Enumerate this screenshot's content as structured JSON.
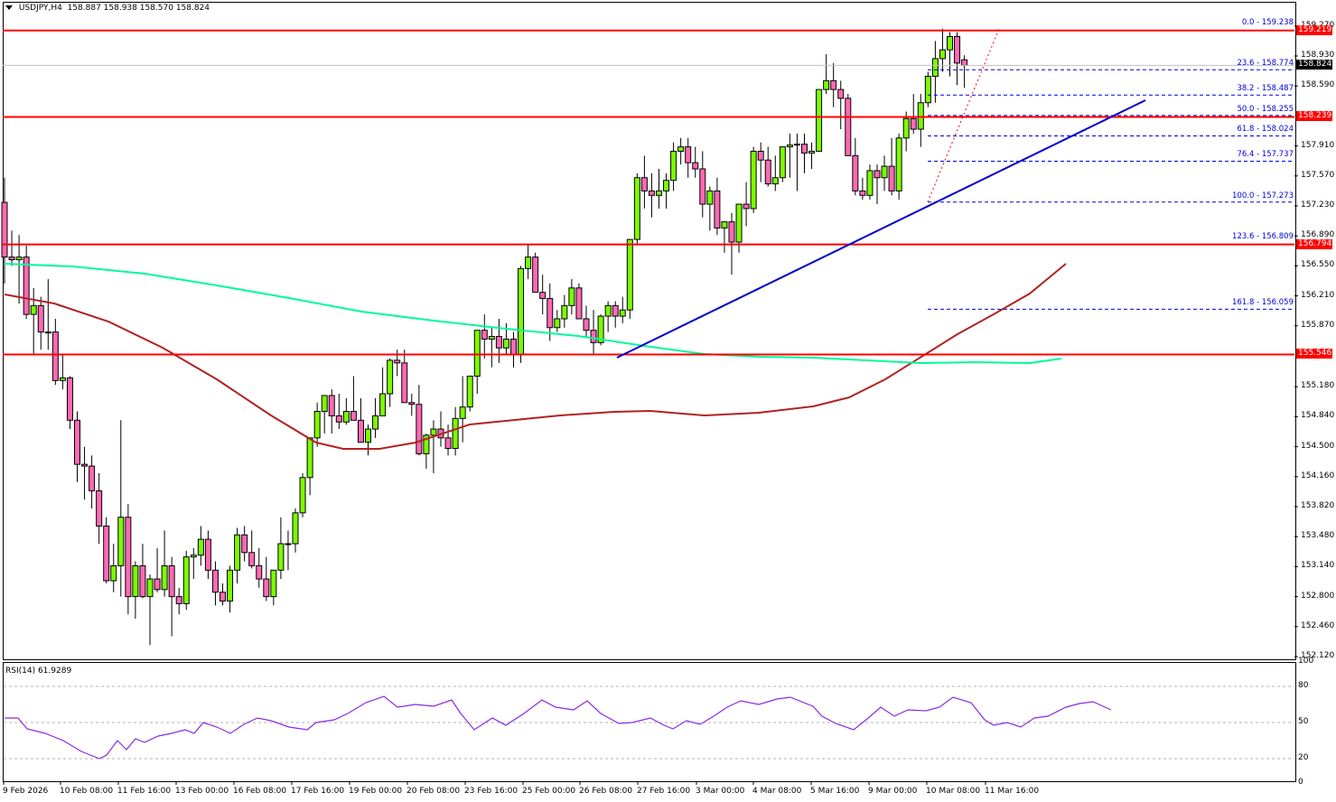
{
  "header": {
    "symbol": "USDJPY,H4",
    "ohlc": "158.887 158.938 158.570 158.824"
  },
  "colors": {
    "bull": "#7CFC00",
    "bear": "#FF69B4",
    "wick": "#000000",
    "hline": "#FF0000",
    "trendline": "#0000CC",
    "ma_fast": "#B22222",
    "ma_slow": "#00FA9A",
    "fib": "#0000DD",
    "rsi": "#8A2BE2",
    "bid_tag": "#000000",
    "level_tag": "#FF0000"
  },
  "price_axis": {
    "labels": [
      "159.270",
      "158.930",
      "158.590",
      "157.910",
      "157.570",
      "157.230",
      "156.890",
      "156.550",
      "156.210",
      "155.870",
      "155.180",
      "154.840",
      "154.500",
      "154.160",
      "153.820",
      "153.480",
      "153.140",
      "152.800",
      "152.460",
      "152.120"
    ],
    "tags": [
      {
        "value": "159.219",
        "type": "level"
      },
      {
        "value": "158.824",
        "type": "bid"
      },
      {
        "value": "158.239",
        "type": "level"
      },
      {
        "value": "156.794",
        "type": "level"
      },
      {
        "value": "155.546",
        "type": "level"
      }
    ]
  },
  "rsi": {
    "title": "RSI(14) 61.9289",
    "axis": [
      "100",
      "80",
      "50",
      "20",
      "0"
    ]
  },
  "time_axis": [
    "9 Feb 2026",
    "10 Feb 08:00",
    "11 Feb 16:00",
    "13 Feb 00:00",
    "16 Feb 08:00",
    "17 Feb 16:00",
    "19 Feb 00:00",
    "20 Feb 08:00",
    "23 Feb 16:00",
    "25 Feb 00:00",
    "26 Feb 08:00",
    "27 Feb 16:00",
    "3 Mar 00:00",
    "4 Mar 08:00",
    "5 Mar 16:00",
    "9 Mar 00:00",
    "10 Mar 08:00",
    "11 Mar 16:00"
  ],
  "fibonacci": [
    {
      "label": "0.0 - 159.238",
      "level": 0.0,
      "price": 159.238
    },
    {
      "label": "23.6 - 158.774",
      "level": 23.6,
      "price": 158.774
    },
    {
      "label": "38.2 - 158.487",
      "level": 38.2,
      "price": 158.487
    },
    {
      "label": "50.0 - 158.255",
      "level": 50.0,
      "price": 158.255
    },
    {
      "label": "61.8 - 158.024",
      "level": 61.8,
      "price": 158.024
    },
    {
      "label": "76.4 - 157.737",
      "level": 76.4,
      "price": 157.737
    },
    {
      "label": "100.0 - 157.273",
      "level": 100.0,
      "price": 157.273
    },
    {
      "label": "123.6 - 156.809",
      "level": 123.6,
      "price": 156.809
    },
    {
      "label": "161.8 - 156.059",
      "level": 161.8,
      "price": 156.059
    }
  ],
  "chart_data": {
    "type": "candlestick",
    "title": "USDJPY,H4",
    "symbol": "USDJPY",
    "timeframe": "H4",
    "last_ohlc": {
      "open": 158.887,
      "high": 158.938,
      "low": 158.57,
      "close": 158.824
    },
    "ylim": [
      152.12,
      159.27
    ],
    "y_ticks": [
      159.27,
      158.93,
      158.59,
      157.91,
      157.57,
      157.23,
      156.89,
      156.55,
      156.21,
      155.87,
      155.18,
      154.84,
      154.5,
      154.16,
      153.82,
      153.48,
      153.14,
      152.8,
      152.46,
      152.12
    ],
    "x_ticks": [
      "9 Feb 2026",
      "10 Feb 08:00",
      "11 Feb 16:00",
      "13 Feb 00:00",
      "16 Feb 08:00",
      "17 Feb 16:00",
      "19 Feb 00:00",
      "20 Feb 08:00",
      "23 Feb 16:00",
      "25 Feb 00:00",
      "26 Feb 08:00",
      "27 Feb 16:00",
      "3 Mar 00:00",
      "4 Mar 08:00",
      "5 Mar 16:00",
      "9 Mar 00:00",
      "10 Mar 08:00",
      "11 Mar 16:00"
    ],
    "horizontal_levels": [
      159.219,
      158.239,
      156.794,
      155.546
    ],
    "current_price": 158.824,
    "candles": [
      [
        157.27,
        157.55,
        156.35,
        156.65
      ],
      [
        156.65,
        156.95,
        156.55,
        156.62
      ],
      [
        156.62,
        156.9,
        156.12,
        156.65
      ],
      [
        156.65,
        156.78,
        155.95,
        156.0
      ],
      [
        156.0,
        156.3,
        155.55,
        156.1
      ],
      [
        156.1,
        156.2,
        155.6,
        155.8
      ],
      [
        155.8,
        156.4,
        155.6,
        155.8
      ],
      [
        155.8,
        155.95,
        155.2,
        155.25
      ],
      [
        155.25,
        155.55,
        155.15,
        155.28
      ],
      [
        155.28,
        155.3,
        154.7,
        154.8
      ],
      [
        154.8,
        154.9,
        154.1,
        154.3
      ],
      [
        154.3,
        154.5,
        153.9,
        154.28
      ],
      [
        154.28,
        154.4,
        153.8,
        154.0
      ],
      [
        154.0,
        154.2,
        153.4,
        153.6
      ],
      [
        153.6,
        153.7,
        152.95,
        152.98
      ],
      [
        152.98,
        153.4,
        152.85,
        153.15
      ],
      [
        153.15,
        154.8,
        152.8,
        153.7
      ],
      [
        153.7,
        153.85,
        152.6,
        152.8
      ],
      [
        152.8,
        153.2,
        152.55,
        153.15
      ],
      [
        153.15,
        153.4,
        152.78,
        152.8
      ],
      [
        152.8,
        153.05,
        152.25,
        153.0
      ],
      [
        153.0,
        153.35,
        152.85,
        152.88
      ],
      [
        152.88,
        153.55,
        152.8,
        153.15
      ],
      [
        153.15,
        153.25,
        152.35,
        152.8
      ],
      [
        152.8,
        152.9,
        152.6,
        152.72
      ],
      [
        152.72,
        153.32,
        152.65,
        153.25
      ],
      [
        153.25,
        153.35,
        153.0,
        153.27
      ],
      [
        153.27,
        153.6,
        153.15,
        153.45
      ],
      [
        153.45,
        153.55,
        153.0,
        153.1
      ],
      [
        153.1,
        153.2,
        152.7,
        152.85
      ],
      [
        152.85,
        152.95,
        152.7,
        152.75
      ],
      [
        152.75,
        153.15,
        152.62,
        153.1
      ],
      [
        153.1,
        153.58,
        152.95,
        153.5
      ],
      [
        153.5,
        153.6,
        153.2,
        153.3
      ],
      [
        153.3,
        153.55,
        153.12,
        153.15
      ],
      [
        153.15,
        153.35,
        152.9,
        153.0
      ],
      [
        153.0,
        153.25,
        152.75,
        152.8
      ],
      [
        152.8,
        153.1,
        152.7,
        153.1
      ],
      [
        153.1,
        153.7,
        153.0,
        153.4
      ],
      [
        153.4,
        153.55,
        153.1,
        153.4
      ],
      [
        153.4,
        153.8,
        153.3,
        153.75
      ],
      [
        153.75,
        154.2,
        153.7,
        154.15
      ],
      [
        154.15,
        154.45,
        153.95,
        154.6
      ],
      [
        154.6,
        155.0,
        154.5,
        154.9
      ],
      [
        154.9,
        155.05,
        154.65,
        155.08
      ],
      [
        155.08,
        155.15,
        154.65,
        154.85
      ],
      [
        154.85,
        155.1,
        154.7,
        154.78
      ],
      [
        154.78,
        155.05,
        154.75,
        154.9
      ],
      [
        154.9,
        155.3,
        154.8,
        154.8
      ],
      [
        154.8,
        155.05,
        154.6,
        154.55
      ],
      [
        154.55,
        154.75,
        154.4,
        154.7
      ],
      [
        154.7,
        155.05,
        154.6,
        154.85
      ],
      [
        154.85,
        155.4,
        154.85,
        155.1
      ],
      [
        155.1,
        155.5,
        154.95,
        155.48
      ],
      [
        155.48,
        155.6,
        155.3,
        155.45
      ],
      [
        155.45,
        155.6,
        155.0,
        155.0
      ],
      [
        155.0,
        155.1,
        154.85,
        154.98
      ],
      [
        154.98,
        155.2,
        154.4,
        154.42
      ],
      [
        154.42,
        154.65,
        154.25,
        154.63
      ],
      [
        154.63,
        154.8,
        154.2,
        154.7
      ],
      [
        154.7,
        154.9,
        154.5,
        154.6
      ],
      [
        154.6,
        154.75,
        154.4,
        154.48
      ],
      [
        154.48,
        154.95,
        154.4,
        154.82
      ],
      [
        154.82,
        155.3,
        154.55,
        154.95
      ],
      [
        154.95,
        155.3,
        154.9,
        155.3
      ],
      [
        155.3,
        155.62,
        155.1,
        155.82
      ],
      [
        155.82,
        156.0,
        155.5,
        155.72
      ],
      [
        155.72,
        155.85,
        155.4,
        155.75
      ],
      [
        155.75,
        155.95,
        155.45,
        155.62
      ],
      [
        155.62,
        155.9,
        155.55,
        155.72
      ],
      [
        155.72,
        155.8,
        155.4,
        155.55
      ],
      [
        155.55,
        156.55,
        155.45,
        156.52
      ],
      [
        156.52,
        156.8,
        156.4,
        156.65
      ],
      [
        156.65,
        156.7,
        156.25,
        156.25
      ],
      [
        156.25,
        156.45,
        156.0,
        156.18
      ],
      [
        156.18,
        156.35,
        155.7,
        155.85
      ],
      [
        155.85,
        156.05,
        155.8,
        155.95
      ],
      [
        155.95,
        156.22,
        155.85,
        156.1
      ],
      [
        156.1,
        156.4,
        156.0,
        156.3
      ],
      [
        156.3,
        156.35,
        155.95,
        155.95
      ],
      [
        155.95,
        156.1,
        155.75,
        155.82
      ],
      [
        155.82,
        156.05,
        155.55,
        155.68
      ],
      [
        155.68,
        156.0,
        155.65,
        155.98
      ],
      [
        155.98,
        156.15,
        155.8,
        156.1
      ],
      [
        156.1,
        156.15,
        155.85,
        155.98
      ],
      [
        155.98,
        156.2,
        155.9,
        156.05
      ],
      [
        156.05,
        156.8,
        155.95,
        156.85
      ],
      [
        156.85,
        157.6,
        156.8,
        157.55
      ],
      [
        157.55,
        157.8,
        157.2,
        157.4
      ],
      [
        157.4,
        157.6,
        157.1,
        157.35
      ],
      [
        157.35,
        157.65,
        157.2,
        157.4
      ],
      [
        157.4,
        157.6,
        157.2,
        157.52
      ],
      [
        157.52,
        157.95,
        157.4,
        157.85
      ],
      [
        157.85,
        158.0,
        157.7,
        157.9
      ],
      [
        157.9,
        158.0,
        157.55,
        157.72
      ],
      [
        157.72,
        157.9,
        157.55,
        157.65
      ],
      [
        157.65,
        157.85,
        157.1,
        157.25
      ],
      [
        157.25,
        157.45,
        156.95,
        157.4
      ],
      [
        157.4,
        157.55,
        156.9,
        156.98
      ],
      [
        156.98,
        157.0,
        156.7,
        157.05
      ],
      [
        157.05,
        157.15,
        156.45,
        156.82
      ],
      [
        156.82,
        157.2,
        156.7,
        157.25
      ],
      [
        157.25,
        157.5,
        157.0,
        157.2
      ],
      [
        157.2,
        157.9,
        157.15,
        157.85
      ],
      [
        157.85,
        157.95,
        157.5,
        157.75
      ],
      [
        157.75,
        157.9,
        157.45,
        157.48
      ],
      [
        157.48,
        157.8,
        157.4,
        157.55
      ],
      [
        157.55,
        157.9,
        157.5,
        157.9
      ],
      [
        157.9,
        158.05,
        157.55,
        157.92
      ],
      [
        157.92,
        158.05,
        157.4,
        157.93
      ],
      [
        157.93,
        158.05,
        157.6,
        157.83
      ],
      [
        157.83,
        157.95,
        157.65,
        157.85
      ],
      [
        157.85,
        158.55,
        157.85,
        158.55
      ],
      [
        158.55,
        158.95,
        158.5,
        158.65
      ],
      [
        158.65,
        158.85,
        158.35,
        158.55
      ],
      [
        158.55,
        158.65,
        158.1,
        158.45
      ],
      [
        158.45,
        158.5,
        157.8,
        157.8
      ],
      [
        157.8,
        158.0,
        157.35,
        157.4
      ],
      [
        157.4,
        157.55,
        157.3,
        157.35
      ],
      [
        157.35,
        157.7,
        157.3,
        157.63
      ],
      [
        157.63,
        157.7,
        157.25,
        157.55
      ],
      [
        157.55,
        157.8,
        157.4,
        157.68
      ],
      [
        157.68,
        158.0,
        157.35,
        157.4
      ],
      [
        157.4,
        158.05,
        157.3,
        158.0
      ],
      [
        158.0,
        158.3,
        157.85,
        158.22
      ],
      [
        158.22,
        158.5,
        158.05,
        158.1
      ],
      [
        158.1,
        158.5,
        157.9,
        158.4
      ],
      [
        158.4,
        158.75,
        158.35,
        158.7
      ],
      [
        158.7,
        159.1,
        158.4,
        158.9
      ],
      [
        158.9,
        159.24,
        158.75,
        159.0
      ],
      [
        159.0,
        159.2,
        158.7,
        159.15
      ],
      [
        159.15,
        159.2,
        158.6,
        158.85
      ],
      [
        158.887,
        158.938,
        158.57,
        158.824
      ]
    ],
    "ma_fast_approx": {
      "color": "#B22222",
      "note": "red-brown moving average, descends from ~156.15 to ~154.52 then rises to ~156.64"
    },
    "ma_slow_approx": {
      "color": "#00FA9A",
      "note": "green moving average, descends from ~156.65 to ~155.50 and flattens"
    },
    "trendline": {
      "from_price": 155.546,
      "to_price": 158.48,
      "color": "#0000CC"
    },
    "indicators": [
      {
        "name": "RSI(14)",
        "value": 61.9289,
        "ylim": [
          0,
          100
        ],
        "levels": [
          20,
          50,
          80
        ]
      }
    ]
  }
}
